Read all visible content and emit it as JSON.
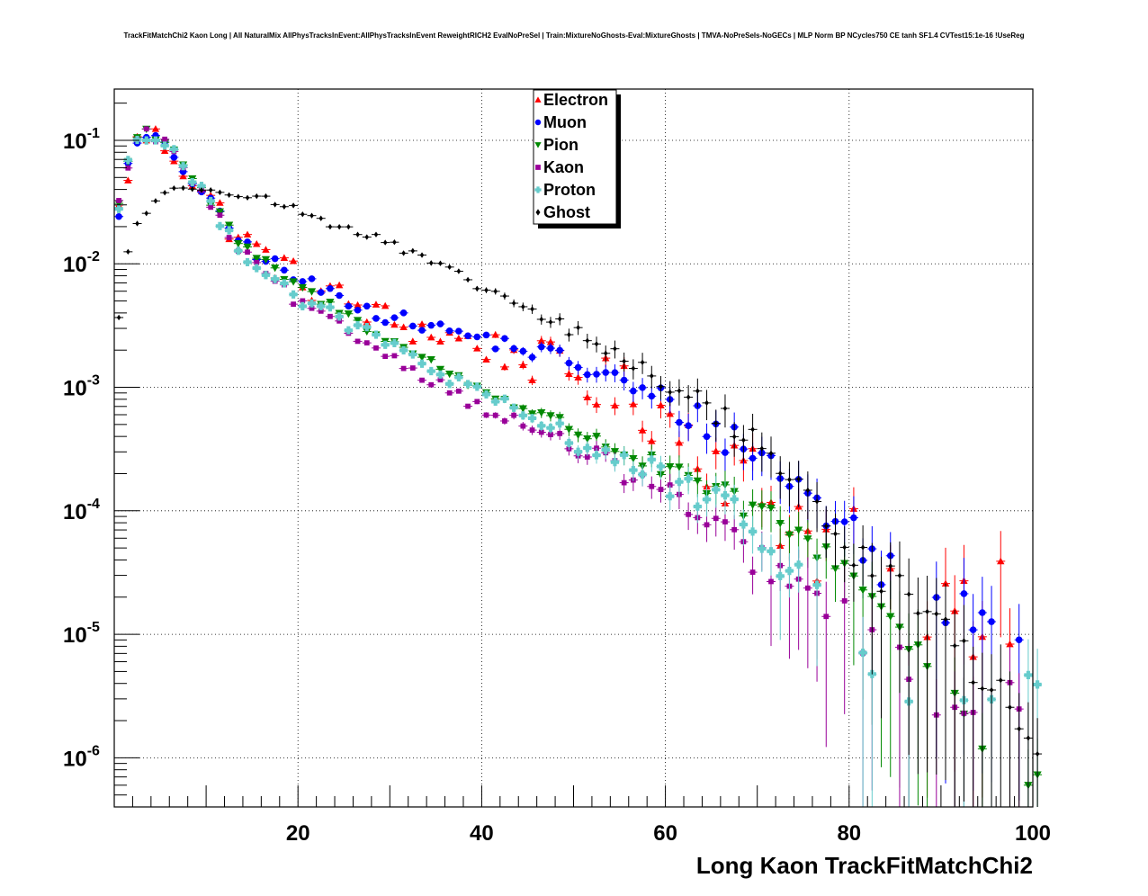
{
  "chart_data": {
    "type": "scatter",
    "title": "TrackFitMatchChi2 Kaon Long | All NaturalMix AllPhysTracksInEvent:AllPhysTracksInEvent ReweightRICH2 EvalNoPreSel | Train:MixtureNoGhosts-Eval:MixtureGhosts | TMVA-NoPreSels-NoGECs | MLP Norm BP NCycles750 CE tanh SF1.4 CVTest15:1e-16 !UseReg",
    "xlabel": "Long Kaon TrackFitMatchChi2",
    "ylabel": "",
    "xlim": [
      0,
      100
    ],
    "ylim": [
      4e-07,
      0.26
    ],
    "yscale": "log",
    "grid": true,
    "legend_position": "top-center",
    "x_ticks": [
      {
        "value": 20,
        "label": "20"
      },
      {
        "value": 40,
        "label": "40"
      },
      {
        "value": 60,
        "label": "60"
      },
      {
        "value": 80,
        "label": "80"
      },
      {
        "value": 100,
        "label": "100"
      }
    ],
    "y_ticks": [
      {
        "value": 0.1,
        "base": "10",
        "exp": "-1"
      },
      {
        "value": 0.01,
        "base": "10",
        "exp": "-2"
      },
      {
        "value": 0.001,
        "base": "10",
        "exp": "-3"
      },
      {
        "value": 0.0001,
        "base": "10",
        "exp": "-4"
      },
      {
        "value": 1e-05,
        "base": "10",
        "exp": "-5"
      },
      {
        "value": 1e-06,
        "base": "10",
        "exp": "-6"
      }
    ],
    "series": [
      {
        "name": "Electron",
        "color": "#ff0000",
        "marker": "triangle-up",
        "start": 0.5,
        "step": 1,
        "peak_x": 3,
        "peak_y": 0.115,
        "y_first": 0.026,
        "anchors": [
          [
            3,
            0.115
          ],
          [
            6,
            0.09
          ],
          [
            10,
            0.035
          ],
          [
            14,
            0.0155
          ],
          [
            20,
            0.0075
          ],
          [
            30,
            0.0034
          ],
          [
            40,
            0.0022
          ],
          [
            50,
            0.0013
          ],
          [
            60,
            0.0006
          ],
          [
            70,
            0.00015
          ],
          [
            80,
            4e-05
          ],
          [
            90,
            1.5e-05
          ],
          [
            100,
            9e-06
          ]
        ],
        "noise": 0.14,
        "cutoff_x": 78,
        "detect_prob": 0.45
      },
      {
        "name": "Muon",
        "color": "#0000ff",
        "marker": "circle",
        "start": 0.5,
        "step": 1,
        "peak_x": 3,
        "peak_y": 0.11,
        "y_first": 0.027,
        "anchors": [
          [
            3,
            0.11
          ],
          [
            6,
            0.085
          ],
          [
            10,
            0.033
          ],
          [
            14,
            0.0145
          ],
          [
            20,
            0.0074
          ],
          [
            30,
            0.0037
          ],
          [
            40,
            0.0025
          ],
          [
            50,
            0.0016
          ],
          [
            60,
            0.00075
          ],
          [
            70,
            0.0003
          ],
          [
            80,
            7e-05
          ],
          [
            85,
            3e-05
          ],
          [
            100,
            1e-05
          ]
        ],
        "noise": 0.06,
        "cutoff_x": 85,
        "detect_prob": 0.3
      },
      {
        "name": "Pion",
        "color": "#008800",
        "marker": "triangle-down",
        "start": 0.5,
        "step": 1,
        "peak_x": 3,
        "peak_y": 0.125,
        "y_first": 0.031,
        "anchors": [
          [
            3,
            0.125
          ],
          [
            6,
            0.095
          ],
          [
            10,
            0.035
          ],
          [
            14,
            0.0135
          ],
          [
            20,
            0.0065
          ],
          [
            30,
            0.0024
          ],
          [
            40,
            0.00095
          ],
          [
            50,
            0.00046
          ],
          [
            60,
            0.00021
          ],
          [
            70,
            0.0001
          ],
          [
            80,
            3.5e-05
          ],
          [
            90,
            4e-06
          ],
          [
            96,
            6e-07
          ]
        ],
        "noise": 0.04,
        "cutoff_x": 85,
        "detect_prob": 0.55
      },
      {
        "name": "Kaon",
        "color": "#990099",
        "marker": "square",
        "start": 0.5,
        "step": 1,
        "peak_x": 3,
        "peak_y": 0.12,
        "y_first": 0.03,
        "anchors": [
          [
            3,
            0.12
          ],
          [
            6,
            0.09
          ],
          [
            10,
            0.032
          ],
          [
            14,
            0.012
          ],
          [
            20,
            0.0048
          ],
          [
            30,
            0.0018
          ],
          [
            40,
            0.00068
          ],
          [
            50,
            0.00033
          ],
          [
            60,
            0.00014
          ],
          [
            70,
            4e-05
          ],
          [
            80,
            1.25e-05
          ],
          [
            90,
            3e-06
          ]
        ],
        "noise": 0.05,
        "cutoff_x": 78,
        "detect_prob": 0.5
      },
      {
        "name": "Proton",
        "color": "#66cccc",
        "marker": "cross",
        "start": 0.5,
        "step": 1,
        "peak_x": 3,
        "peak_y": 0.12,
        "y_first": 0.03,
        "anchors": [
          [
            3,
            0.12
          ],
          [
            6,
            0.09
          ],
          [
            10,
            0.033
          ],
          [
            14,
            0.0125
          ],
          [
            20,
            0.0053
          ],
          [
            30,
            0.0022
          ],
          [
            40,
            0.00085
          ],
          [
            50,
            0.00038
          ],
          [
            60,
            0.00018
          ],
          [
            70,
            7e-05
          ],
          [
            80,
            1e-05
          ],
          [
            85,
            3e-06
          ]
        ],
        "noise": 0.06,
        "cutoff_x": 75,
        "detect_prob": 0.35
      },
      {
        "name": "Ghost",
        "color": "#000000",
        "marker": "diamond",
        "start": 0.5,
        "step": 1,
        "peak_x": 10,
        "peak_y": 0.043,
        "y_first": 0.0036,
        "anchors": [
          [
            0.5,
            0.0036
          ],
          [
            1.5,
            0.013
          ],
          [
            2.5,
            0.021
          ],
          [
            4,
            0.031
          ],
          [
            7,
            0.04
          ],
          [
            10,
            0.043
          ],
          [
            15,
            0.036
          ],
          [
            20,
            0.027
          ],
          [
            30,
            0.0145
          ],
          [
            40,
            0.0065
          ],
          [
            50,
            0.0028
          ],
          [
            60,
            0.0011
          ],
          [
            70,
            0.00038
          ],
          [
            80,
            5e-05
          ],
          [
            90,
            1.2e-05
          ],
          [
            100,
            1.4e-06
          ]
        ],
        "noise": 0.04,
        "cutoff_x": 101,
        "detect_prob": 1.0
      }
    ]
  }
}
